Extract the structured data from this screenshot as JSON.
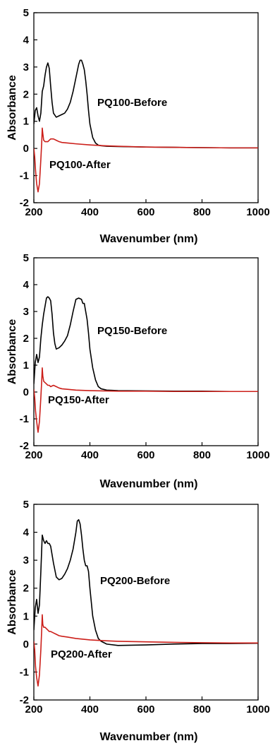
{
  "chart_data": [
    {
      "type": "line",
      "xlabel": "Wavenumber (nm)",
      "ylabel": "Absorbance",
      "xlim": [
        200,
        1000
      ],
      "ylim": [
        -2,
        5
      ],
      "x_ticks": [
        "200",
        "400",
        "600",
        "800",
        "1000"
      ],
      "y_ticks": [
        "-2",
        "-1",
        "0",
        "1",
        "2",
        "3",
        "4",
        "5"
      ],
      "grid": false,
      "series": [
        {
          "name": "PQ100-Before",
          "color": "#000000",
          "x": [
            200,
            205,
            210,
            215,
            220,
            225,
            230,
            235,
            240,
            245,
            250,
            255,
            260,
            265,
            270,
            280,
            290,
            300,
            310,
            320,
            330,
            340,
            350,
            360,
            365,
            370,
            375,
            380,
            385,
            390,
            395,
            400,
            410,
            420,
            430,
            440,
            460,
            500,
            600,
            700,
            800,
            900,
            1000
          ],
          "y": [
            0.9,
            1.4,
            1.5,
            1.2,
            1.0,
            1.3,
            2.1,
            2.3,
            2.7,
            3.0,
            3.15,
            2.95,
            2.3,
            1.7,
            1.3,
            1.15,
            1.2,
            1.25,
            1.3,
            1.45,
            1.7,
            2.1,
            2.6,
            3.1,
            3.25,
            3.25,
            3.1,
            2.9,
            2.5,
            2.0,
            1.4,
            0.9,
            0.4,
            0.2,
            0.12,
            0.1,
            0.08,
            0.07,
            0.05,
            0.04,
            0.03,
            0.02,
            0.02
          ]
        },
        {
          "name": "PQ100-After",
          "color": "#cc1f1a",
          "x": [
            200,
            203,
            206,
            210,
            215,
            220,
            225,
            228,
            230,
            232,
            235,
            240,
            245,
            250,
            255,
            260,
            270,
            280,
            290,
            300,
            320,
            350,
            400,
            450,
            500,
            600,
            700,
            800,
            900,
            1000
          ],
          "y": [
            0.0,
            -0.3,
            -0.8,
            -1.3,
            -1.6,
            -1.3,
            -0.4,
            0.2,
            0.75,
            0.55,
            0.3,
            0.25,
            0.25,
            0.25,
            0.3,
            0.35,
            0.35,
            0.3,
            0.25,
            0.22,
            0.2,
            0.17,
            0.13,
            0.1,
            0.08,
            0.05,
            0.04,
            0.03,
            0.02,
            0.02
          ]
        }
      ]
    },
    {
      "type": "line",
      "xlabel": "Wavenumber (nm)",
      "ylabel": "Absorbance",
      "xlim": [
        200,
        1000
      ],
      "ylim": [
        -2,
        5
      ],
      "x_ticks": [
        "200",
        "400",
        "600",
        "800",
        "1000"
      ],
      "y_ticks": [
        "-2",
        "-1",
        "0",
        "1",
        "2",
        "3",
        "4",
        "5"
      ],
      "grid": false,
      "series": [
        {
          "name": "PQ150-Before",
          "color": "#000000",
          "x": [
            200,
            205,
            210,
            215,
            220,
            225,
            230,
            235,
            240,
            245,
            250,
            255,
            260,
            265,
            270,
            275,
            280,
            290,
            300,
            310,
            320,
            330,
            340,
            350,
            360,
            370,
            375,
            380,
            385,
            390,
            395,
            400,
            410,
            420,
            430,
            440,
            460,
            500,
            600,
            700,
            800,
            900,
            1000
          ],
          "y": [
            0.3,
            1.1,
            1.4,
            1.1,
            1.3,
            2.0,
            2.5,
            2.9,
            3.2,
            3.5,
            3.55,
            3.5,
            3.4,
            2.9,
            2.2,
            1.8,
            1.6,
            1.65,
            1.75,
            1.9,
            2.1,
            2.5,
            3.0,
            3.45,
            3.5,
            3.45,
            3.3,
            3.3,
            3.0,
            2.7,
            2.2,
            1.6,
            0.9,
            0.45,
            0.2,
            0.12,
            0.07,
            0.05,
            0.04,
            0.03,
            0.03,
            0.02,
            0.02
          ]
        },
        {
          "name": "PQ150-After",
          "color": "#cc1f1a",
          "x": [
            200,
            203,
            206,
            210,
            215,
            220,
            225,
            228,
            230,
            232,
            235,
            240,
            245,
            250,
            255,
            260,
            270,
            280,
            290,
            300,
            320,
            350,
            400,
            450,
            500,
            600,
            700,
            800,
            900,
            1000
          ],
          "y": [
            0.1,
            -0.2,
            -0.7,
            -1.1,
            -1.5,
            -1.1,
            -0.2,
            0.4,
            0.9,
            0.6,
            0.4,
            0.35,
            0.3,
            0.25,
            0.25,
            0.2,
            0.25,
            0.2,
            0.15,
            0.12,
            0.1,
            0.07,
            0.05,
            0.04,
            0.03,
            0.03,
            0.02,
            0.02,
            0.02,
            0.02
          ]
        }
      ]
    },
    {
      "type": "line",
      "xlabel": "Wavenumber (nm)",
      "ylabel": "Absorbance",
      "xlim": [
        200,
        1000
      ],
      "ylim": [
        -2,
        5
      ],
      "x_ticks": [
        "200",
        "400",
        "600",
        "800",
        "1000"
      ],
      "y_ticks": [
        "-2",
        "-1",
        "0",
        "1",
        "2",
        "3",
        "4",
        "5"
      ],
      "grid": false,
      "series": [
        {
          "name": "PQ200-Before",
          "color": "#000000",
          "x": [
            200,
            205,
            210,
            215,
            220,
            225,
            230,
            235,
            240,
            245,
            250,
            255,
            260,
            270,
            280,
            290,
            300,
            310,
            320,
            330,
            340,
            350,
            355,
            360,
            365,
            370,
            375,
            380,
            385,
            390,
            395,
            400,
            410,
            420,
            430,
            440,
            460,
            500,
            600,
            700,
            800,
            900,
            1000
          ],
          "y": [
            0.5,
            1.3,
            1.6,
            1.1,
            1.4,
            2.6,
            3.9,
            3.7,
            3.6,
            3.7,
            3.6,
            3.6,
            3.5,
            2.9,
            2.4,
            2.3,
            2.35,
            2.5,
            2.7,
            3.0,
            3.4,
            4.0,
            4.4,
            4.45,
            4.3,
            3.9,
            3.4,
            3.0,
            2.8,
            2.8,
            2.6,
            2.0,
            1.0,
            0.5,
            0.2,
            0.1,
            0.0,
            -0.05,
            -0.03,
            0.0,
            0.02,
            0.02,
            0.03
          ]
        },
        {
          "name": "PQ200-After",
          "color": "#cc1f1a",
          "x": [
            200,
            203,
            206,
            210,
            215,
            220,
            225,
            228,
            230,
            232,
            235,
            240,
            245,
            250,
            255,
            260,
            270,
            280,
            290,
            300,
            320,
            350,
            400,
            450,
            500,
            600,
            700,
            800,
            900,
            1000
          ],
          "y": [
            0.1,
            -0.2,
            -0.8,
            -1.2,
            -1.5,
            -1.1,
            -0.2,
            0.5,
            1.05,
            0.7,
            0.6,
            0.6,
            0.55,
            0.5,
            0.45,
            0.45,
            0.4,
            0.35,
            0.3,
            0.28,
            0.25,
            0.2,
            0.15,
            0.12,
            0.1,
            0.08,
            0.06,
            0.05,
            0.04,
            0.04
          ]
        }
      ]
    }
  ]
}
